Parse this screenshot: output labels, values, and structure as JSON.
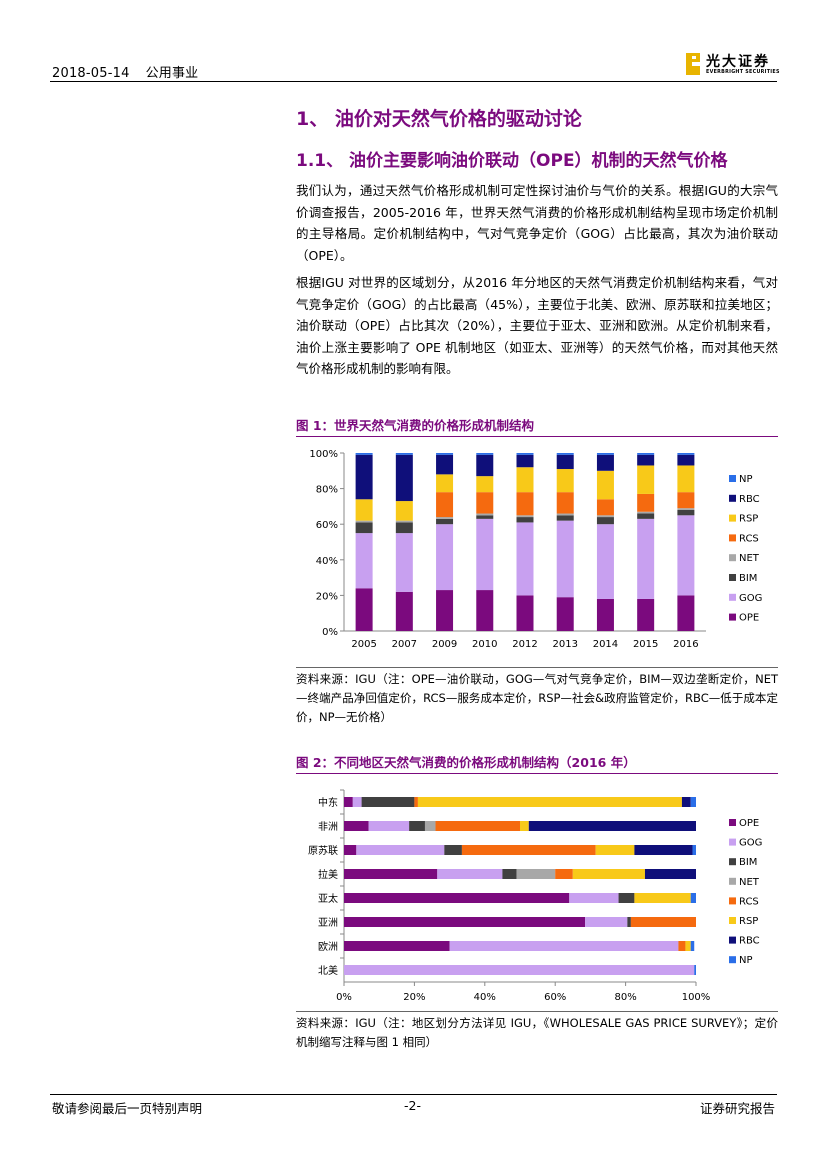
{
  "header": {
    "date": "2018-05-14",
    "sector": "公用事业",
    "logo_cn": "光大证券",
    "logo_en": "EVERBRIGHT SECURITIES"
  },
  "section_title": "1、 油价对天然气价格的驱动讨论",
  "subsection_title": "1.1、 油价主要影响油价联动（OPE）机制的天然气价格",
  "paragraphs": [
    "我们认为，通过天然气价格形成机制可定性探讨油价与气价的关系。根据IGU的大宗气价调查报告，2005-2016 年，世界天然气消费的价格形成机制结构呈现市场定价机制的主导格局。定价机制结构中，气对气竞争定价（GOG）占比最高，其次为油价联动（OPE）。",
    "根据IGU 对世界的区域划分，从2016 年分地区的天然气消费定价机制结构来看，气对气竞争定价（GOG）的占比最高（45%），主要位于北美、欧洲、原苏联和拉美地区；油价联动（OPE）占比其次（20%），主要位于亚太、亚洲和欧洲。从定价机制来看，油价上涨主要影响了 OPE 机制地区（如亚太、亚洲等）的天然气价格，而对其他天然气价格形成机制的影响有限。"
  ],
  "colors": {
    "accent": "#7b0a7e",
    "OPE": "#7b0a7e",
    "GOG": "#c8a0f0",
    "BIM": "#404040",
    "NET": "#a8a8a8",
    "RCS": "#f56a0f",
    "RSP": "#f8c919",
    "RBC": "#0f0f7a",
    "NP": "#2a6ee8"
  },
  "figure1": {
    "title": "图 1：世界天然气消费的价格形成机制结构",
    "source": "资料来源：IGU（注：OPE—油价联动，GOG—气对气竞争定价，BIM—双边垄断定价，NET—终端产品净回值定价，RCS—服务成本定价，RSP—社会&政府监管定价，RBC—低于成本定价，NP—无价格）"
  },
  "figure2": {
    "title": "图 2：不同地区天然气消费的价格形成机制结构（2016 年）",
    "source": "资料来源：IGU（注：地区划分方法详见 IGU，《WHOLESALE GAS PRICE SURVEY》；定价机制缩写注释与图 1 相同）"
  },
  "chart_data": [
    {
      "type": "bar",
      "stacked": true,
      "orientation": "vertical",
      "title": "图 1：世界天然气消费的价格形成机制结构",
      "categories": [
        "2005",
        "2007",
        "2009",
        "2010",
        "2012",
        "2013",
        "2014",
        "2015",
        "2016"
      ],
      "yticks": [
        "0%",
        "20%",
        "40%",
        "60%",
        "80%",
        "100%"
      ],
      "ylim": [
        0,
        100
      ],
      "legend_order": [
        "NP",
        "RBC",
        "RSP",
        "RCS",
        "NET",
        "BIM",
        "GOG",
        "OPE"
      ],
      "series": [
        {
          "name": "OPE",
          "values": [
            24,
            22,
            23,
            23,
            20,
            19,
            18,
            18,
            20
          ]
        },
        {
          "name": "GOG",
          "values": [
            31,
            33,
            37,
            40,
            41,
            43,
            42,
            45,
            45
          ]
        },
        {
          "name": "BIM",
          "values": [
            6,
            6,
            3,
            2,
            3,
            3,
            4,
            3,
            3
          ]
        },
        {
          "name": "NET",
          "values": [
            1,
            1,
            1,
            1,
            1,
            1,
            1,
            1,
            1
          ]
        },
        {
          "name": "RCS",
          "values": [
            0,
            0,
            14,
            12,
            13,
            12,
            9,
            10,
            9
          ]
        },
        {
          "name": "RSP",
          "values": [
            12,
            11,
            10,
            9,
            14,
            13,
            16,
            16,
            15
          ]
        },
        {
          "name": "RBC",
          "values": [
            25,
            26,
            11,
            12,
            7,
            8,
            9,
            6,
            6
          ]
        },
        {
          "name": "NP",
          "values": [
            1,
            1,
            1,
            1,
            1,
            1,
            1,
            1,
            1
          ]
        }
      ]
    },
    {
      "type": "bar",
      "stacked": true,
      "orientation": "horizontal",
      "title": "图 2：不同地区天然气消费的价格形成机制结构（2016 年）",
      "categories": [
        "中东",
        "非洲",
        "原苏联",
        "拉美",
        "亚太",
        "亚洲",
        "欧洲",
        "北美"
      ],
      "xticks": [
        "0%",
        "20%",
        "40%",
        "60%",
        "80%",
        "100%"
      ],
      "xlim": [
        0,
        100
      ],
      "legend_order": [
        "OPE",
        "GOG",
        "BIM",
        "NET",
        "RCS",
        "RSP",
        "RBC",
        "NP"
      ],
      "series": [
        {
          "name": "OPE",
          "values": [
            2.5,
            7,
            3.5,
            26.5,
            64,
            68.5,
            30,
            0
          ]
        },
        {
          "name": "GOG",
          "values": [
            2.5,
            11.5,
            25,
            18.5,
            14,
            12,
            65,
            99.5
          ]
        },
        {
          "name": "BIM",
          "values": [
            15,
            4.5,
            5,
            4,
            4.5,
            1,
            0,
            0
          ]
        },
        {
          "name": "NET",
          "values": [
            0,
            3,
            0,
            11,
            0,
            0,
            0,
            0
          ]
        },
        {
          "name": "RCS",
          "values": [
            1,
            24,
            38,
            5,
            0,
            18.5,
            2,
            0
          ]
        },
        {
          "name": "RSP",
          "values": [
            75,
            2.5,
            11,
            20.5,
            16,
            0,
            1.5,
            0
          ]
        },
        {
          "name": "RBC",
          "values": [
            2.5,
            47.5,
            16.5,
            14.5,
            0,
            0,
            0,
            0
          ]
        },
        {
          "name": "NP",
          "values": [
            1.5,
            0,
            1,
            0,
            1.5,
            0,
            1,
            0.5
          ]
        }
      ]
    }
  ],
  "footer": {
    "left": "敬请参阅最后一页特别声明",
    "center": "-2-",
    "right": "证券研究报告"
  }
}
